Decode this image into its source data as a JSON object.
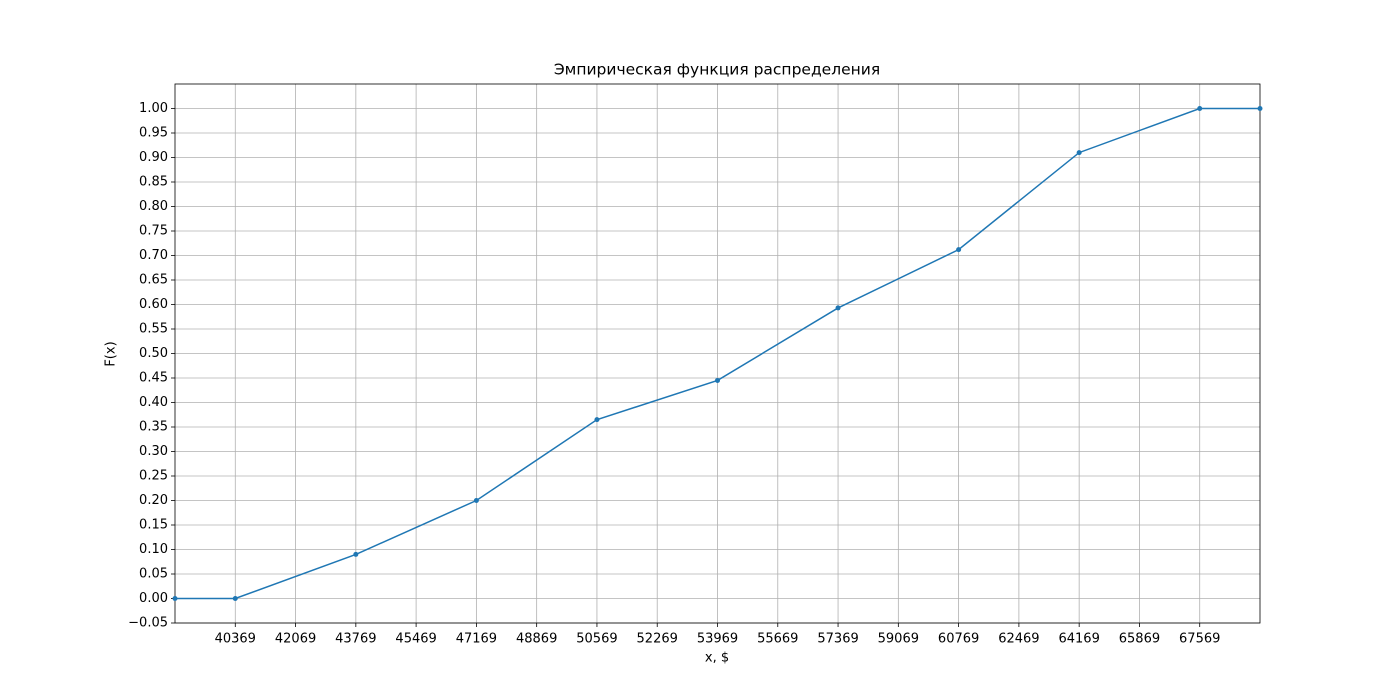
{
  "chart_data": {
    "type": "line",
    "title": "Эмпирическая функция распределения",
    "xlabel": "x, $",
    "ylabel": "F(x)",
    "x": [
      38669,
      40369,
      43769,
      47169,
      50569,
      53969,
      57369,
      60769,
      64169,
      67569,
      69269
    ],
    "series": [
      {
        "color": "#1f77b4",
        "values": [
          0,
          0,
          0.09,
          0.2,
          0.365,
          0.445,
          0.593,
          0.712,
          0.91,
          1,
          1
        ]
      }
    ],
    "xlim": [
      38669,
      69269
    ],
    "xticks": [
      40369,
      42069,
      43769,
      45469,
      47169,
      48869,
      50569,
      52269,
      53969,
      55669,
      57369,
      59069,
      60769,
      62469,
      64169,
      65869,
      67569
    ],
    "ylim": [
      -0.05,
      1.05
    ],
    "yticks": [
      {
        "value": -0.05,
        "label": "−0.05"
      },
      {
        "value": 0,
        "label": "0.00"
      },
      0.05,
      {
        "value": 0.1,
        "label": "0.10"
      },
      0.15,
      {
        "value": 0.2,
        "label": "0.20"
      },
      0.25,
      {
        "value": 0.3,
        "label": "0.30"
      },
      0.35,
      {
        "value": 0.4,
        "label": "0.40"
      },
      0.45,
      {
        "value": 0.5,
        "label": "0.50"
      },
      0.55,
      {
        "value": 0.6,
        "label": "0.60"
      },
      0.65,
      {
        "value": 0.7,
        "label": "0.70"
      },
      0.75,
      {
        "value": 0.8,
        "label": "0.80"
      },
      0.85,
      {
        "value": 0.9,
        "label": "0.90"
      },
      0.95,
      {
        "value": 1,
        "label": "1.00"
      }
    ],
    "grid": true
  }
}
